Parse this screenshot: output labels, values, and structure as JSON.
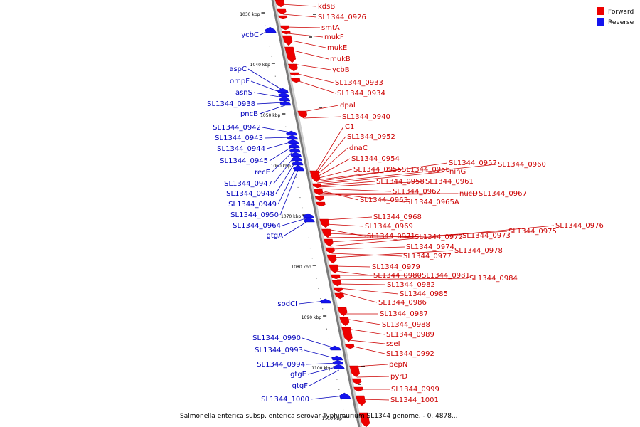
{
  "legend": {
    "items": [
      {
        "label": "Forward",
        "color": "#ee0000"
      },
      {
        "label": "Reverse",
        "color": "#1414ee"
      }
    ]
  },
  "caption": "Salmonella enterica subsp. enterica serovar Typhimurium SL1344 genome. - 0..4878...",
  "colors": {
    "forward": "#ee0000",
    "reverse": "#1414ee",
    "forward_label": "#cc0000",
    "reverse_label": "#0000bb",
    "axis": "#7a7a7a"
  },
  "ticks": [
    {
      "label": "1030 kbp",
      "kbp": 1030
    },
    {
      "label": "1040 kbp",
      "kbp": 1040
    },
    {
      "label": "1050 kbp",
      "kbp": 1050
    },
    {
      "label": "1060 kbp",
      "kbp": 1060
    },
    {
      "label": "1070 kbp",
      "kbp": 1070
    },
    {
      "label": "1080 kbp",
      "kbp": 1080
    },
    {
      "label": "1090 kbp",
      "kbp": 1090
    },
    {
      "label": "1100 kbp",
      "kbp": 1100
    },
    {
      "label": "1110 kbp",
      "kbp": 1110
    }
  ],
  "forward_genes": [
    "kdsB",
    "SL1344_0926",
    "smtA",
    "mukF",
    "mukE",
    "mukB",
    "ycbB",
    "SL1344_0933",
    "SL1344_0934",
    "dpaL",
    "SL1344_0940",
    "C1",
    "SL1344_0952",
    "dnaC",
    "SL1344_0954",
    "SL1344_0955",
    "SL1344_0956",
    "SL1344_0957",
    "SL1344_0960",
    "ninG",
    "SL1344_0958",
    "SL1344_0961",
    "SL1344_0962",
    "SL1344_0963",
    "SL1344_0965A",
    "nucD",
    "SL1344_0967",
    "SL1344_0968",
    "SL1344_0969",
    "SL1344_0971",
    "SL1344_0972",
    "SL1344_0973",
    "SL1344_0975",
    "SL1344_0976",
    "SL1344_0974",
    "SL1344_0977",
    "SL1344_0978",
    "SL1344_0979",
    "SL1344_0980",
    "SL1344_0981",
    "SL1344_0984",
    "SL1344_0982",
    "SL1344_0985",
    "SL1344_0986",
    "SL1344_0987",
    "SL1344_0988",
    "SL1344_0989",
    "sseI",
    "SL1344_0992",
    "pepN",
    "pyrD",
    "SL1344_0999",
    "SL1344_1001"
  ],
  "reverse_genes": [
    "ycbC",
    "aspC",
    "ompF",
    "asnS",
    "SL1344_0938",
    "pncB",
    "SL1344_0942",
    "SL1344_0943",
    "SL1344_0944",
    "SL1344_0945",
    "recE",
    "SL1344_0947",
    "SL1344_0948",
    "SL1344_0949",
    "SL1344_0950",
    "SL1344_0964",
    "gtgA",
    "sodCI",
    "SL1344_0990",
    "SL1344_0993",
    "SL1344_0994",
    "gtgE",
    "gtgF",
    "SL1344_1000"
  ]
}
